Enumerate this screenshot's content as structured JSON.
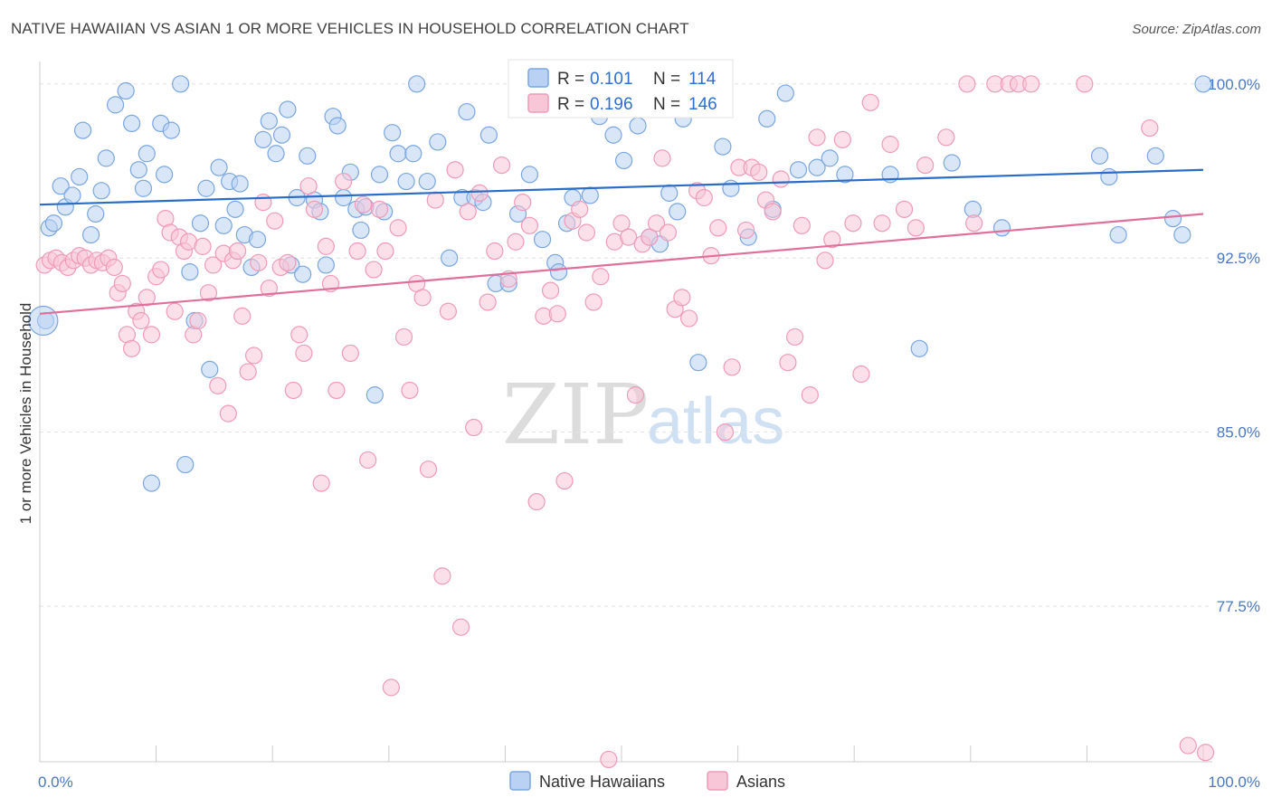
{
  "title": "NATIVE HAWAIIAN VS ASIAN 1 OR MORE VEHICLES IN HOUSEHOLD CORRELATION CHART",
  "source": "Source: ZipAtlas.com",
  "watermark": {
    "zip": "ZIP",
    "atlas": "atlas"
  },
  "chart_data": {
    "type": "scatter",
    "ylabel": "1 or more Vehicles in Household",
    "xlim": [
      0,
      100
    ],
    "ylim": [
      70.8,
      101.2
    ],
    "x_tick_labels": {
      "left": "0.0%",
      "right": "100.0%"
    },
    "y_ticks": [
      {
        "value": 100.0,
        "label": "100.0%"
      },
      {
        "value": 92.5,
        "label": "92.5%"
      },
      {
        "value": 85.0,
        "label": "85.0%"
      },
      {
        "value": 77.5,
        "label": "77.5%"
      }
    ],
    "grid": true,
    "legend_position": "top-center",
    "series": [
      {
        "name": "Native Hawaiians",
        "color": "#7aa6e0",
        "fill": "#b9d1f2",
        "line_color": "#2a6dc8",
        "r_label": "R = ",
        "r_value": "0.101",
        "n_label": "N = ",
        "n_value": "114",
        "trend": {
          "x0": 0,
          "y0": 94.8,
          "x1": 100,
          "y1": 96.3
        },
        "points": [
          [
            0.5,
            89.8
          ],
          [
            0.8,
            93.8
          ],
          [
            1.2,
            94.0
          ],
          [
            1.8,
            95.6
          ],
          [
            2.2,
            94.7
          ],
          [
            2.8,
            95.2
          ],
          [
            3.4,
            96.0
          ],
          [
            3.7,
            98.0
          ],
          [
            4.4,
            93.5
          ],
          [
            4.8,
            94.4
          ],
          [
            5.3,
            95.4
          ],
          [
            5.7,
            96.8
          ],
          [
            6.5,
            99.1
          ],
          [
            7.4,
            99.7
          ],
          [
            7.9,
            98.3
          ],
          [
            8.5,
            96.3
          ],
          [
            8.9,
            95.5
          ],
          [
            9.2,
            97.0
          ],
          [
            9.6,
            82.8
          ],
          [
            10.4,
            98.3
          ],
          [
            10.7,
            96.1
          ],
          [
            11.3,
            98.0
          ],
          [
            12.1,
            100.0
          ],
          [
            12.5,
            83.6
          ],
          [
            12.9,
            91.9
          ],
          [
            13.3,
            89.8
          ],
          [
            13.8,
            94.0
          ],
          [
            14.3,
            95.5
          ],
          [
            14.6,
            87.7
          ],
          [
            15.4,
            96.4
          ],
          [
            15.8,
            93.9
          ],
          [
            16.3,
            95.8
          ],
          [
            16.8,
            94.6
          ],
          [
            17.2,
            95.7
          ],
          [
            17.6,
            93.5
          ],
          [
            18.2,
            92.1
          ],
          [
            18.7,
            93.3
          ],
          [
            19.2,
            97.6
          ],
          [
            19.7,
            98.4
          ],
          [
            20.3,
            97.0
          ],
          [
            20.8,
            97.8
          ],
          [
            21.3,
            98.9
          ],
          [
            21.6,
            92.2
          ],
          [
            22.1,
            95.1
          ],
          [
            22.6,
            91.8
          ],
          [
            23.0,
            96.9
          ],
          [
            23.6,
            95.0
          ],
          [
            24.1,
            94.5
          ],
          [
            24.6,
            92.2
          ],
          [
            25.2,
            98.6
          ],
          [
            25.6,
            98.2
          ],
          [
            26.1,
            95.1
          ],
          [
            26.7,
            96.2
          ],
          [
            27.2,
            94.6
          ],
          [
            27.6,
            93.7
          ],
          [
            28.0,
            94.7
          ],
          [
            28.8,
            86.6
          ],
          [
            29.2,
            96.1
          ],
          [
            29.6,
            94.5
          ],
          [
            30.3,
            97.9
          ],
          [
            30.8,
            97.0
          ],
          [
            31.5,
            95.8
          ],
          [
            32.1,
            97.0
          ],
          [
            32.4,
            100.0
          ],
          [
            33.3,
            95.8
          ],
          [
            34.2,
            97.5
          ],
          [
            35.2,
            92.5
          ],
          [
            36.3,
            95.1
          ],
          [
            36.7,
            98.8
          ],
          [
            37.4,
            95.1
          ],
          [
            38.1,
            94.9
          ],
          [
            38.6,
            97.8
          ],
          [
            39.2,
            91.4
          ],
          [
            40.3,
            91.4
          ],
          [
            41.1,
            94.4
          ],
          [
            42.1,
            96.1
          ],
          [
            43.2,
            93.3
          ],
          [
            44.3,
            92.3
          ],
          [
            44.6,
            91.9
          ],
          [
            45.3,
            94.0
          ],
          [
            45.8,
            95.1
          ],
          [
            46.2,
            99.3
          ],
          [
            47.3,
            95.2
          ],
          [
            48.1,
            98.6
          ],
          [
            49.3,
            97.8
          ],
          [
            50.2,
            96.7
          ],
          [
            51.4,
            98.2
          ],
          [
            52.4,
            93.4
          ],
          [
            53.3,
            93.1
          ],
          [
            54.1,
            95.3
          ],
          [
            54.8,
            94.5
          ],
          [
            55.3,
            98.5
          ],
          [
            56.6,
            88.0
          ],
          [
            58.1,
            99.3
          ],
          [
            58.7,
            97.3
          ],
          [
            59.4,
            95.5
          ],
          [
            60.9,
            93.4
          ],
          [
            62.5,
            98.5
          ],
          [
            63.0,
            94.6
          ],
          [
            64.1,
            99.6
          ],
          [
            65.2,
            96.3
          ],
          [
            66.8,
            96.4
          ],
          [
            67.9,
            96.8
          ],
          [
            69.2,
            96.1
          ],
          [
            73.1,
            96.1
          ],
          [
            75.6,
            88.6
          ],
          [
            78.4,
            96.6
          ],
          [
            80.2,
            94.6
          ],
          [
            82.7,
            93.8
          ],
          [
            91.1,
            96.9
          ],
          [
            91.9,
            96.0
          ],
          [
            92.7,
            93.5
          ],
          [
            95.9,
            96.9
          ],
          [
            97.4,
            94.2
          ],
          [
            98.2,
            93.5
          ],
          [
            100.0,
            100.0
          ]
        ]
      },
      {
        "name": "Asians",
        "color": "#f09ab8",
        "fill": "#f7c7d7",
        "line_color": "#e0709a",
        "r_label": "R = ",
        "r_value": "0.196",
        "n_label": "N = ",
        "n_value": "146",
        "trend": {
          "x0": 0,
          "y0": 90.1,
          "x1": 100,
          "y1": 94.4
        },
        "points": [
          [
            0.4,
            92.2
          ],
          [
            0.9,
            92.4
          ],
          [
            1.4,
            92.5
          ],
          [
            1.9,
            92.3
          ],
          [
            2.4,
            92.1
          ],
          [
            2.9,
            92.4
          ],
          [
            3.4,
            92.6
          ],
          [
            3.9,
            92.5
          ],
          [
            4.4,
            92.2
          ],
          [
            4.9,
            92.4
          ],
          [
            5.4,
            92.3
          ],
          [
            5.9,
            92.5
          ],
          [
            6.4,
            92.1
          ],
          [
            6.7,
            91.0
          ],
          [
            7.1,
            91.4
          ],
          [
            7.5,
            89.2
          ],
          [
            7.9,
            88.6
          ],
          [
            8.3,
            90.2
          ],
          [
            8.7,
            89.8
          ],
          [
            9.2,
            90.8
          ],
          [
            9.6,
            89.2
          ],
          [
            10.0,
            91.7
          ],
          [
            10.4,
            92.0
          ],
          [
            10.8,
            94.2
          ],
          [
            11.2,
            93.6
          ],
          [
            11.6,
            90.2
          ],
          [
            12.0,
            93.4
          ],
          [
            12.4,
            92.8
          ],
          [
            12.8,
            93.2
          ],
          [
            13.2,
            89.2
          ],
          [
            13.6,
            89.8
          ],
          [
            14.0,
            93.0
          ],
          [
            14.5,
            91.0
          ],
          [
            14.9,
            92.2
          ],
          [
            15.3,
            87.0
          ],
          [
            15.8,
            92.7
          ],
          [
            16.2,
            85.8
          ],
          [
            16.6,
            92.4
          ],
          [
            17.0,
            92.8
          ],
          [
            17.4,
            90.0
          ],
          [
            17.9,
            87.6
          ],
          [
            18.4,
            88.3
          ],
          [
            18.8,
            92.3
          ],
          [
            19.2,
            94.9
          ],
          [
            19.7,
            91.2
          ],
          [
            20.2,
            94.1
          ],
          [
            20.7,
            92.1
          ],
          [
            21.3,
            92.3
          ],
          [
            21.8,
            86.8
          ],
          [
            22.3,
            89.2
          ],
          [
            22.7,
            88.4
          ],
          [
            23.1,
            95.6
          ],
          [
            23.6,
            94.6
          ],
          [
            24.2,
            82.8
          ],
          [
            24.6,
            93.0
          ],
          [
            25.0,
            91.4
          ],
          [
            25.5,
            86.8
          ],
          [
            26.1,
            95.8
          ],
          [
            26.7,
            88.4
          ],
          [
            27.3,
            92.8
          ],
          [
            27.8,
            94.8
          ],
          [
            28.2,
            83.8
          ],
          [
            28.7,
            92.0
          ],
          [
            29.2,
            94.6
          ],
          [
            29.7,
            92.8
          ],
          [
            30.2,
            74.0
          ],
          [
            30.8,
            93.8
          ],
          [
            31.3,
            89.1
          ],
          [
            31.8,
            86.8
          ],
          [
            32.4,
            91.4
          ],
          [
            32.9,
            90.8
          ],
          [
            33.4,
            83.4
          ],
          [
            34.0,
            95.0
          ],
          [
            34.6,
            78.8
          ],
          [
            35.1,
            90.2
          ],
          [
            35.7,
            96.3
          ],
          [
            36.2,
            76.6
          ],
          [
            36.8,
            94.5
          ],
          [
            37.3,
            85.2
          ],
          [
            37.8,
            95.3
          ],
          [
            38.5,
            90.6
          ],
          [
            39.1,
            92.8
          ],
          [
            39.7,
            96.5
          ],
          [
            40.3,
            91.6
          ],
          [
            40.9,
            93.2
          ],
          [
            41.5,
            94.9
          ],
          [
            42.1,
            93.9
          ],
          [
            42.7,
            82.0
          ],
          [
            43.3,
            90.0
          ],
          [
            43.9,
            91.1
          ],
          [
            44.5,
            90.1
          ],
          [
            45.1,
            82.9
          ],
          [
            45.8,
            94.1
          ],
          [
            46.4,
            94.6
          ],
          [
            47.0,
            93.6
          ],
          [
            47.6,
            90.6
          ],
          [
            48.2,
            91.7
          ],
          [
            48.9,
            70.9
          ],
          [
            49.4,
            93.2
          ],
          [
            50.0,
            94.0
          ],
          [
            50.6,
            93.4
          ],
          [
            51.2,
            86.6
          ],
          [
            51.8,
            93.1
          ],
          [
            52.4,
            93.4
          ],
          [
            53.0,
            94.0
          ],
          [
            53.5,
            96.8
          ],
          [
            54.0,
            93.6
          ],
          [
            54.6,
            90.3
          ],
          [
            55.2,
            90.8
          ],
          [
            55.8,
            89.9
          ],
          [
            56.5,
            95.4
          ],
          [
            57.1,
            95.1
          ],
          [
            57.7,
            92.6
          ],
          [
            58.3,
            93.8
          ],
          [
            58.9,
            85.0
          ],
          [
            59.5,
            87.8
          ],
          [
            60.1,
            96.4
          ],
          [
            60.7,
            93.7
          ],
          [
            61.2,
            96.4
          ],
          [
            61.8,
            96.2
          ],
          [
            62.4,
            95.0
          ],
          [
            63.0,
            94.5
          ],
          [
            63.7,
            95.9
          ],
          [
            64.3,
            88.0
          ],
          [
            64.9,
            89.1
          ],
          [
            65.5,
            93.9
          ],
          [
            66.2,
            86.6
          ],
          [
            66.8,
            97.7
          ],
          [
            67.5,
            92.4
          ],
          [
            68.1,
            93.3
          ],
          [
            69.0,
            97.6
          ],
          [
            69.9,
            94.0
          ],
          [
            70.6,
            87.5
          ],
          [
            71.4,
            99.2
          ],
          [
            72.4,
            94.0
          ],
          [
            73.1,
            97.4
          ],
          [
            74.3,
            94.6
          ],
          [
            75.3,
            93.8
          ],
          [
            76.1,
            96.5
          ],
          [
            77.9,
            97.7
          ],
          [
            79.7,
            100.0
          ],
          [
            80.3,
            94.0
          ],
          [
            82.1,
            100.0
          ],
          [
            83.3,
            100.0
          ],
          [
            84.1,
            100.0
          ],
          [
            85.2,
            100.0
          ],
          [
            89.8,
            100.0
          ],
          [
            95.4,
            98.1
          ],
          [
            98.7,
            71.5
          ],
          [
            100.2,
            71.2
          ]
        ]
      }
    ]
  }
}
